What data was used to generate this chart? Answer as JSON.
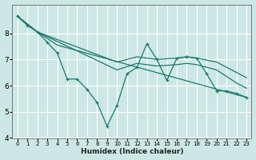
{
  "xlabel": "Humidex (Indice chaleur)",
  "background_color": "#cde8e4",
  "grid_color": "#ffffff",
  "line_color": "#1a7a6e",
  "xlim": [
    -0.5,
    23.5
  ],
  "ylim": [
    4,
    9.1
  ],
  "yticks": [
    4,
    5,
    6,
    7,
    8
  ],
  "xticks": [
    0,
    1,
    2,
    3,
    4,
    5,
    6,
    7,
    8,
    9,
    10,
    11,
    12,
    13,
    14,
    15,
    16,
    17,
    18,
    19,
    20,
    21,
    22,
    23
  ],
  "series_zigzag": {
    "x": [
      0,
      1,
      2,
      3,
      4,
      5,
      6,
      7,
      8,
      9,
      10,
      11,
      12,
      13,
      14,
      15,
      16,
      17,
      18,
      19,
      20,
      21,
      22,
      23
    ],
    "y": [
      8.65,
      8.3,
      8.05,
      7.65,
      7.25,
      6.25,
      6.25,
      5.85,
      5.35,
      4.45,
      5.25,
      6.45,
      6.7,
      7.6,
      7.0,
      6.2,
      7.05,
      7.1,
      7.05,
      6.45,
      5.8,
      5.8,
      5.7,
      5.55
    ]
  },
  "series_line1": {
    "x": [
      0,
      2,
      10,
      12,
      14,
      16,
      17,
      18,
      20,
      22,
      23
    ],
    "y": [
      8.65,
      8.05,
      6.9,
      7.1,
      7.0,
      7.05,
      7.1,
      7.05,
      6.9,
      6.5,
      6.3
    ]
  },
  "series_line2": {
    "x": [
      0,
      2,
      10,
      12,
      14,
      16,
      17,
      18,
      20,
      22,
      23
    ],
    "y": [
      8.65,
      8.05,
      6.6,
      6.85,
      6.75,
      6.8,
      6.85,
      6.8,
      6.6,
      6.1,
      5.9
    ]
  },
  "series_straight": {
    "x": [
      0,
      2,
      4,
      23
    ],
    "y": [
      8.65,
      8.05,
      7.55,
      5.55
    ]
  }
}
